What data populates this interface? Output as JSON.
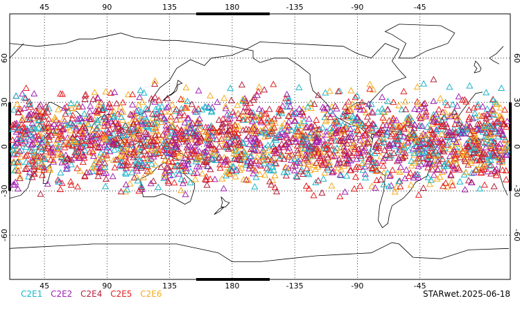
{
  "map": {
    "top_lon_labels": [
      "45",
      "90",
      "135",
      "180",
      "-135",
      "-90",
      "-45"
    ],
    "bottom_lon_labels": [
      "45",
      "90",
      "135",
      "180",
      "-135",
      "-90",
      "-45"
    ],
    "lat_labels": [
      "60",
      "30",
      "0",
      "-30",
      "-60"
    ],
    "grid": "dotted"
  },
  "legend": [
    {
      "label": "C2E1",
      "color": "#19b4c8"
    },
    {
      "label": "C2E2",
      "color": "#a01eb4"
    },
    {
      "label": "C2E4",
      "color": "#b41e3c"
    },
    {
      "label": "C2E5",
      "color": "#e61e1e"
    },
    {
      "label": "C2E6",
      "color": "#f5aa1e"
    }
  ],
  "stamp": "STARwet.2025-06-18",
  "observations": {
    "marker": "triangle-outline",
    "lat_range": [
      -40,
      48
    ],
    "description_note": ""
  }
}
